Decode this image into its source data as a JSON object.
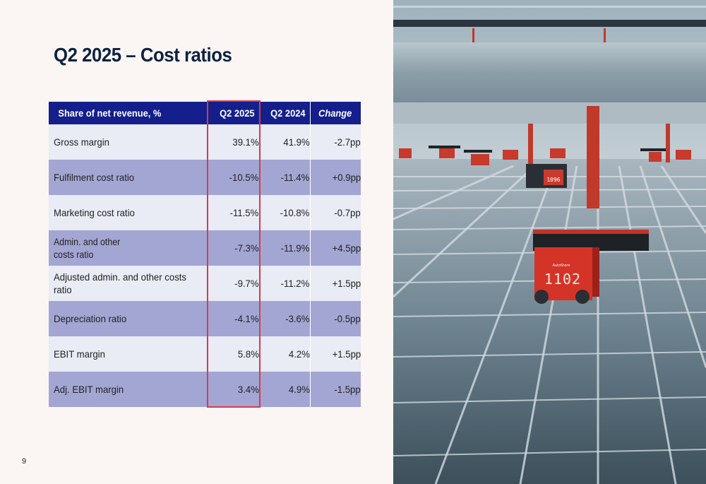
{
  "slide": {
    "title": "Q2 2025 – Cost ratios",
    "page_number": "9"
  },
  "table": {
    "headers": [
      "Share of net revenue, %",
      "Q2 2025",
      "Q2 2024",
      "Change"
    ],
    "rows": [
      {
        "label": "Gross margin",
        "q2_2025": "39.1%",
        "q2_2024": "41.9%",
        "change": "-2.7pp"
      },
      {
        "label": "Fulfilment cost ratio",
        "q2_2025": "-10.5%",
        "q2_2024": "-11.4%",
        "change": "+0.9pp"
      },
      {
        "label": "Marketing cost ratio",
        "q2_2025": "-11.5%",
        "q2_2024": "-10.8%",
        "change": "-0.7pp"
      },
      {
        "label_line1": "Admin. and other",
        "label_line2": "costs ratio",
        "q2_2025": "-7.3%",
        "q2_2024": "-11.9%",
        "change": "+4.5pp"
      },
      {
        "label": "Adjusted admin. and other costs ratio",
        "q2_2025": "-9.7%",
        "q2_2024": "-11.2%",
        "change": "+1.5pp"
      },
      {
        "label": "Depreciation ratio",
        "q2_2025": "-4.1%",
        "q2_2024": "-3.6%",
        "change": "-0.5pp"
      },
      {
        "label": "EBIT margin",
        "q2_2025": "5.8%",
        "q2_2024": "4.2%",
        "change": "+1.5pp"
      },
      {
        "label": "Adj. EBIT margin",
        "q2_2025": "3.4%",
        "q2_2024": "4.9%",
        "change": "-1.5pp"
      }
    ]
  },
  "photo": {
    "robot_front_number": "1102",
    "robot_back_number": "1096",
    "robot_brand_text": "AutoStore"
  },
  "colors": {
    "title": "#0d2240",
    "header_bg": "#141f8c",
    "row_light": "#e9ebf5",
    "row_dark": "#a3a6d3",
    "highlight": "#d43c4c",
    "robot_red": "#d43327"
  }
}
